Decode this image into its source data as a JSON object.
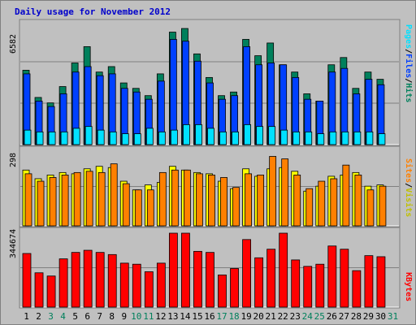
{
  "title": "Daily usage for November 2012",
  "colors": {
    "hits": "#00805c",
    "files": "#0040ff",
    "pages": "#00e0ff",
    "visits": "#ffff00",
    "sites": "#ff8000",
    "kbytes": "#ff0000",
    "weekend_day": "#00805c",
    "weekday": "#000000",
    "panel_bg": "#c0c0c0"
  },
  "labels": {
    "pages": "Pages",
    "files": "Files",
    "hits": "Hits",
    "sites": "Sites",
    "visits": "Visits",
    "kbytes": "KBytes",
    "sep": "/"
  },
  "chart_data": {
    "type": "bar",
    "title": "Daily usage for November 2012",
    "categories": [
      "1",
      "2",
      "3",
      "4",
      "5",
      "6",
      "7",
      "8",
      "9",
      "10",
      "11",
      "12",
      "13",
      "14",
      "15",
      "16",
      "17",
      "18",
      "19",
      "20",
      "21",
      "22",
      "23",
      "24",
      "25",
      "26",
      "27",
      "28",
      "29",
      "30",
      "31"
    ],
    "weekend_days": [
      "3",
      "4",
      "10",
      "11",
      "17",
      "18",
      "24",
      "25",
      "31"
    ],
    "panels": [
      {
        "name": "hits-files-pages",
        "max_label": "6582",
        "max": 6582,
        "series": [
          {
            "name": "Hits",
            "values": [
              4100,
              2600,
              2300,
              3200,
              4500,
              5400,
              4000,
              4300,
              3400,
              3100,
              2700,
              3900,
              6200,
              6400,
              5000,
              3700,
              2700,
              2900,
              5800,
              4900,
              5600,
              4400,
              4000,
              2800,
              2400,
              4400,
              4800,
              3100,
              4000,
              3600,
              0
            ]
          },
          {
            "name": "Files",
            "values": [
              3900,
              2400,
              2100,
              2800,
              4000,
              4300,
              3800,
              3900,
              3100,
              2900,
              2500,
              3500,
              5800,
              5700,
              4600,
              3400,
              2500,
              2700,
              5400,
              4400,
              4500,
              4400,
              3700,
              2500,
              2400,
              4000,
              4200,
              2800,
              3600,
              3300,
              0
            ]
          },
          {
            "name": "Pages",
            "values": [
              800,
              700,
              700,
              700,
              900,
              1000,
              800,
              700,
              600,
              600,
              900,
              700,
              800,
              1100,
              1100,
              900,
              700,
              700,
              1100,
              1000,
              1000,
              800,
              700,
              700,
              600,
              700,
              700,
              700,
              700,
              600,
              0
            ]
          }
        ]
      },
      {
        "name": "visits-sites",
        "max_label": "298",
        "max": 298,
        "series": [
          {
            "name": "Visits",
            "values": [
              225,
              190,
              205,
              215,
              210,
              230,
              240,
              235,
              180,
              145,
              165,
              175,
              240,
              225,
              215,
              210,
              180,
              150,
              230,
              200,
              230,
              235,
              220,
              140,
              160,
              200,
              205,
              215,
              160,
              165,
              0
            ]
          },
          {
            "name": "Sites",
            "values": [
              210,
              180,
              195,
              205,
              215,
              220,
              215,
              250,
              170,
              145,
              145,
              215,
              225,
              225,
              210,
              205,
              195,
              155,
              210,
              205,
              280,
              270,
              205,
              150,
              180,
              190,
              245,
              205,
              145,
              160,
              0
            ]
          }
        ]
      },
      {
        "name": "kbytes",
        "max_label": "344674",
        "max": 344674,
        "series": [
          {
            "name": "KBytes",
            "values": [
              250000,
              160000,
              145000,
              225000,
              255000,
              265000,
              255000,
              245000,
              205000,
              200000,
              165000,
              205000,
              344674,
              344674,
              260000,
              255000,
              150000,
              180000,
              315000,
              230000,
              270000,
              344674,
              220000,
              190000,
              200000,
              285000,
              270000,
              170000,
              240000,
              235000,
              0
            ]
          }
        ]
      }
    ],
    "legend_placement": "right-vertical"
  }
}
